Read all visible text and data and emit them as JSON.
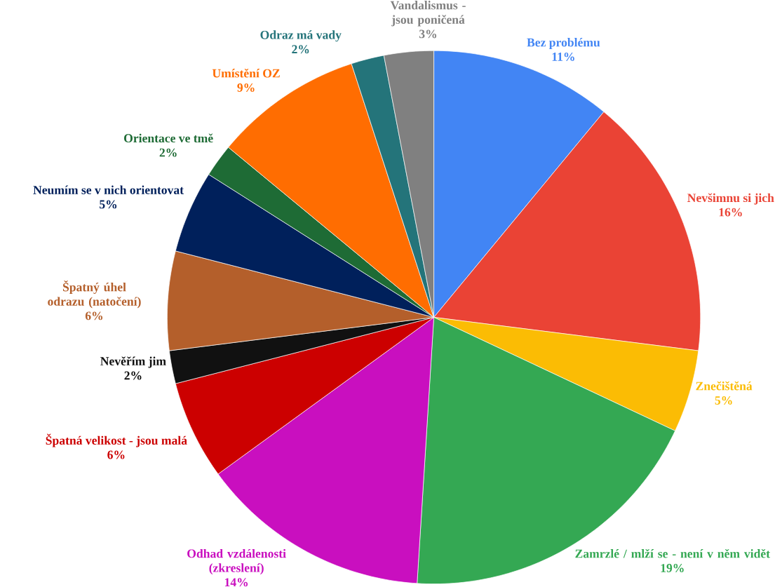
{
  "chart_data": {
    "type": "pie",
    "categories": [
      "Bez problému",
      "Nevšimnu si jich",
      "Znečištěná",
      "Zamrzlé / mlží se - není v něm vidět",
      "Odhad vzdálenosti (zkreslení)",
      "Špatná velikost - jsou malá",
      "Nevěřím jim",
      "Špatný úhel odrazu (natočení)",
      "Neumím se v nich orientovat",
      "Orientace ve tmě",
      "Umístění OZ",
      "Odraz má vady",
      "Vandalismus - jsou poničená"
    ],
    "values": [
      11,
      16,
      5,
      19,
      14,
      6,
      2,
      6,
      5,
      2,
      9,
      2,
      3
    ],
    "value_labels": [
      "11%",
      "16%",
      "5%",
      "19%",
      "14%",
      "6%",
      "2%",
      "6%",
      "5%",
      "2%",
      "9%",
      "2%",
      "3%"
    ],
    "colors": [
      "#4285f4",
      "#ea4335",
      "#fbbc04",
      "#34a853",
      "#c90fbf",
      "#cc0000",
      "#111111",
      "#b45f2b",
      "#00205b",
      "#1e6b35",
      "#ff6d01",
      "#24747a",
      "#808080"
    ]
  }
}
